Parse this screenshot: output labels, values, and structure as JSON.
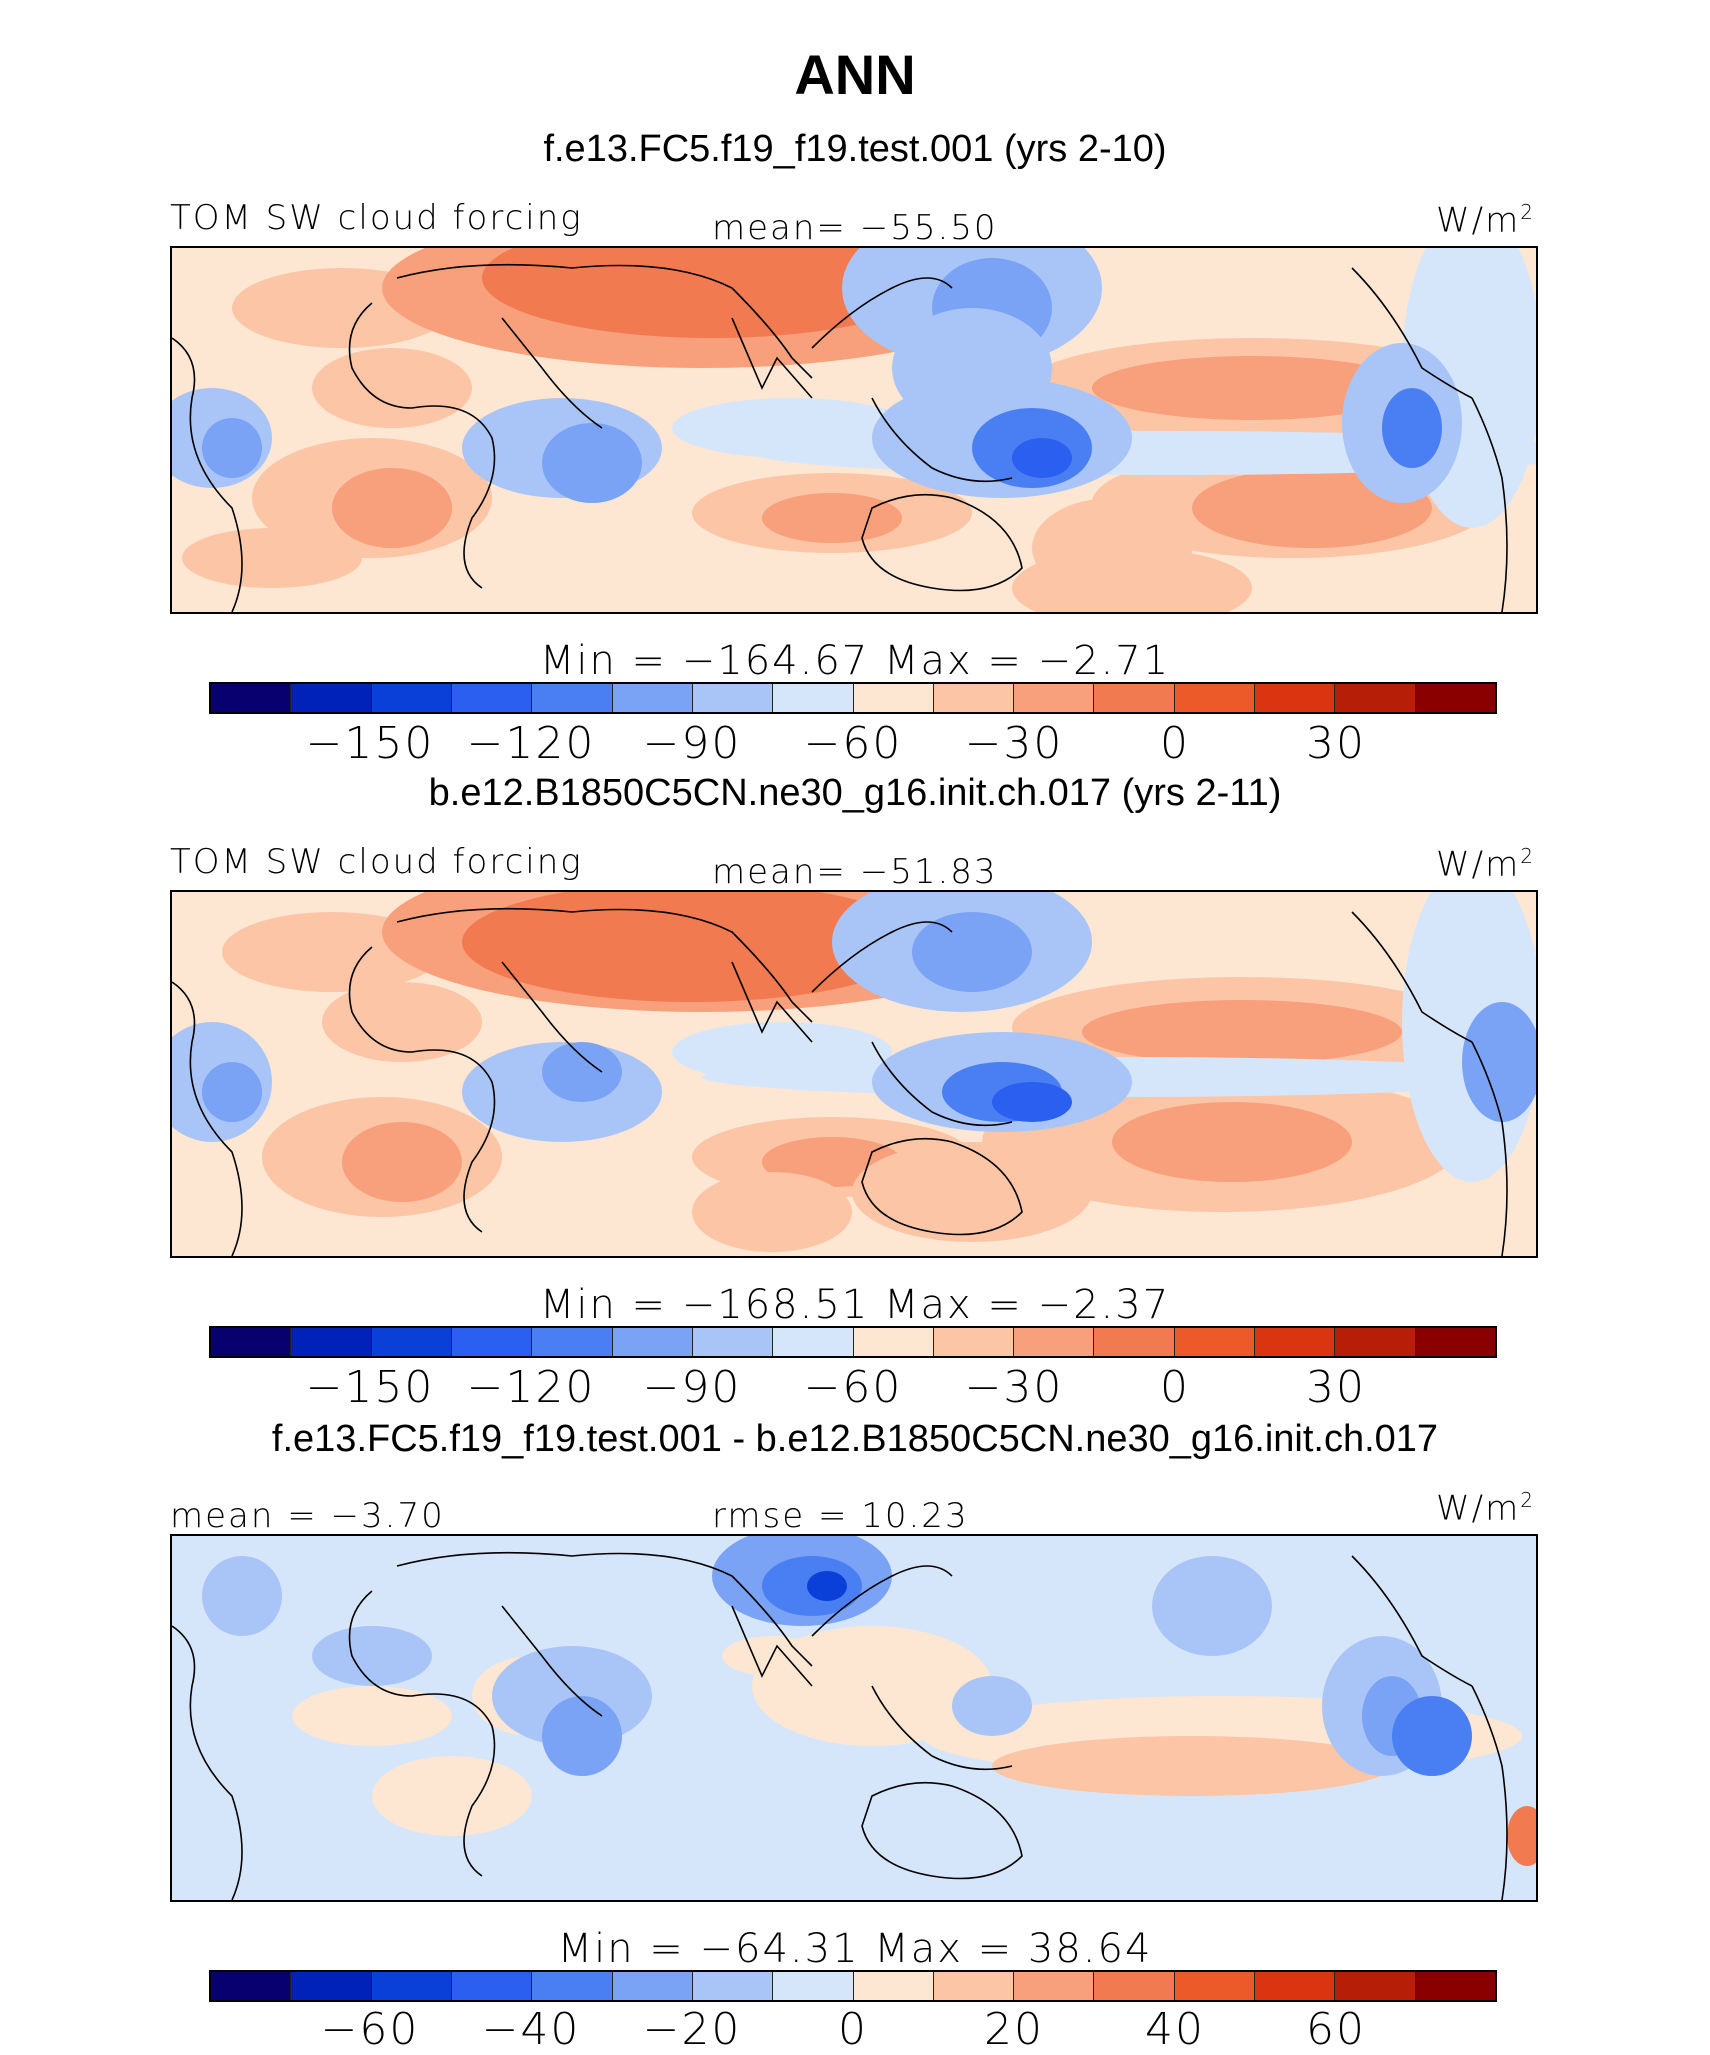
{
  "title": "ANN",
  "chart_data": [
    {
      "type": "heatmap",
      "title": "f.e13.FC5.f19_f19.test.001 (yrs 2-10)",
      "left_label": "TOM SW cloud forcing",
      "center_label": "mean= −55.50",
      "units": "W/m",
      "units_sup": "2",
      "stats": "Min = −164.67 Max = −2.71",
      "min": -164.67,
      "max": -2.71,
      "mean": -55.5,
      "colorbar_ticks": [
        "−150",
        "−120",
        "−90",
        "−60",
        "−30",
        "0",
        "30"
      ],
      "colorbar_levels": [
        -165,
        -150,
        -135,
        -120,
        -105,
        -90,
        -75,
        -60,
        -45,
        -30,
        -15,
        0,
        15,
        30,
        45
      ]
    },
    {
      "type": "heatmap",
      "title": "b.e12.B1850C5CN.ne30_g16.init.ch.017 (yrs 2-11)",
      "left_label": "TOM SW cloud forcing",
      "center_label": "mean= −51.83",
      "units": "W/m",
      "units_sup": "2",
      "stats": "Min = −168.51 Max = −2.37",
      "min": -168.51,
      "max": -2.37,
      "mean": -51.83,
      "colorbar_ticks": [
        "−150",
        "−120",
        "−90",
        "−60",
        "−30",
        "0",
        "30"
      ],
      "colorbar_levels": [
        -165,
        -150,
        -135,
        -120,
        -105,
        -90,
        -75,
        -60,
        -45,
        -30,
        -15,
        0,
        15,
        30,
        45
      ]
    },
    {
      "type": "heatmap",
      "title": "f.e13.FC5.f19_f19.test.001 - b.e12.B1850C5CN.ne30_g16.init.ch.017",
      "left_label": "mean = −3.70",
      "center_label": "rmse = 10.23",
      "units": "W/m",
      "units_sup": "2",
      "stats": "Min = −64.31 Max = 38.64",
      "min": -64.31,
      "max": 38.64,
      "mean": -3.7,
      "rmse": 10.23,
      "colorbar_ticks": [
        "−60",
        "−40",
        "−20",
        "0",
        "20",
        "40",
        "60"
      ],
      "colorbar_levels": [
        -70,
        -60,
        -50,
        -40,
        -30,
        -20,
        -10,
        0,
        10,
        20,
        30,
        40,
        50,
        60,
        70
      ]
    }
  ],
  "colors": {
    "colorbar": [
      "#08006e",
      "#0022b8",
      "#0a3fd8",
      "#2a5ff0",
      "#4a7ff3",
      "#7aa3f5",
      "#a9c5f7",
      "#d6e6fa",
      "#fde6d2",
      "#fbc5a6",
      "#f7a07b",
      "#f27a50",
      "#ec5a2a",
      "#db3410",
      "#b71e08",
      "#8a0000"
    ],
    "map_base_land": "#d6e6fa",
    "map_base_ocean": "#fde6d2"
  }
}
